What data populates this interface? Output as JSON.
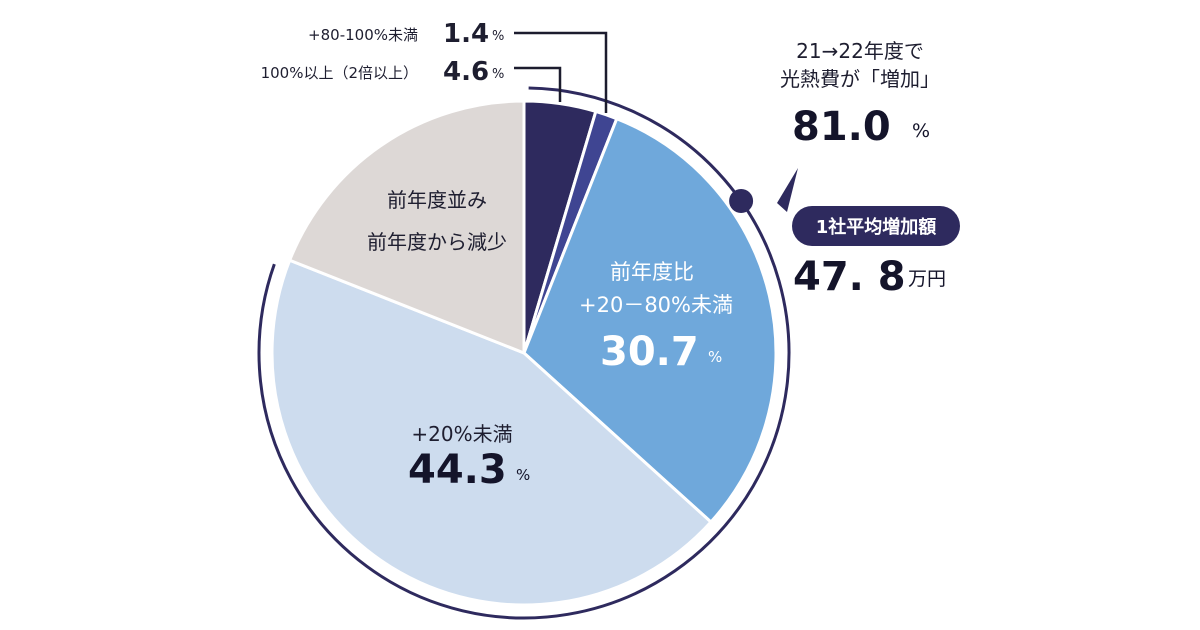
{
  "chart_data": {
    "type": "pie",
    "slices": [
      {
        "label": "100%以上（2倍以上）",
        "value": 4.6,
        "unit": "%",
        "color": "#2e2a5e"
      },
      {
        "label": "+80-100%未満",
        "value": 1.4,
        "unit": "%",
        "color": "#3f4592"
      },
      {
        "label_line1": "前年度比",
        "label_line2": "+20－80%未満",
        "value": 30.7,
        "unit": "%",
        "color": "#6fa8db"
      },
      {
        "label": "+20%未満",
        "value": 44.3,
        "unit": "%",
        "color": "#cddcee"
      },
      {
        "label_line1": "前年度並み",
        "label_line2": "前年度から減少",
        "value": 19.0,
        "color": "#ddd8d6"
      }
    ],
    "annotation": {
      "line1": "21→22年度で",
      "line2": "光熱費が「増加」",
      "value": "81.0",
      "unit": "%"
    },
    "average": {
      "label": "1社平均増加額",
      "value": "47. 8",
      "unit": "万円"
    },
    "colors": {
      "ring": "#2e2a5e",
      "pill": "#2e2a5e",
      "leader": "#1c1c2e"
    }
  }
}
